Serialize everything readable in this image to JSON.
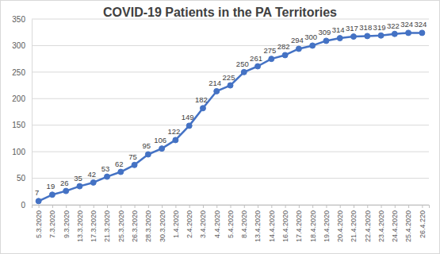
{
  "chart_data": {
    "type": "line",
    "title": "COVID-19 Patients in the PA Territories",
    "categories": [
      "5.3.2020",
      "7.3.2020",
      "9.3.2020",
      "13.3.2020",
      "17.3.2020",
      "21.3.2020",
      "25.3.2020",
      "26.3.2020",
      "28.3.2020",
      "30.3.2020",
      "1.4.2020",
      "2.4.2020",
      "3.4.2020",
      "4.4.2020",
      "5.4.2020",
      "8.4.2020",
      "13.4.2020",
      "14.4.2020",
      "16.4.2020",
      "17.4.2020",
      "18.4.2020",
      "19.4.2020",
      "20.4.2020",
      "21.4.2020",
      "22.4.2020",
      "23.4.2020",
      "24.4.2020",
      "25.4.2020",
      "26.4.220"
    ],
    "values": [
      7,
      19,
      26,
      35,
      42,
      53,
      62,
      75,
      95,
      106,
      122,
      149,
      182,
      214,
      225,
      250,
      261,
      275,
      282,
      294,
      300,
      309,
      314,
      317,
      318,
      319,
      322,
      324,
      324
    ],
    "color": "#4472c4",
    "ylim": [
      0,
      350
    ],
    "yticks": [
      0,
      50,
      100,
      150,
      200,
      250,
      300,
      350
    ],
    "grid": true,
    "marker": "circle",
    "data_labels": true
  }
}
